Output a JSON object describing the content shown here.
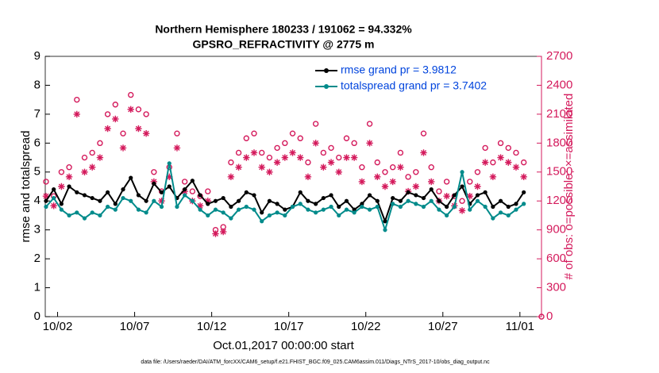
{
  "chart_data": {
    "type": "line",
    "title": "Northern Hemisphere 180233 / 191062 = 94.332%",
    "subtitle": "GPSRO_REFRACTIVITY @ 2775 m",
    "ylabel": "rmse and totalspread",
    "y2label": "# of obs: o=possible; ×=assimilated",
    "xlabel": "Oct.01,2017 00:00:00 start",
    "footnote": "data file: /Users/raeder/DAI/ATM_forcXX/CAM6_setup/f.e21.FHIST_BGC.f09_025.CAM6assim.011/Diags_NTrS_2017-10/obs_diag_output.nc",
    "legend": "upper right",
    "xlim": [
      1.2,
      33.4
    ],
    "xticks": [
      {
        "value": 2,
        "label": "10/02"
      },
      {
        "value": 7,
        "label": "10/07"
      },
      {
        "value": 12,
        "label": "10/12"
      },
      {
        "value": 17,
        "label": "10/17"
      },
      {
        "value": 22,
        "label": "10/22"
      },
      {
        "value": 27,
        "label": "10/27"
      },
      {
        "value": 32,
        "label": "11/01"
      }
    ],
    "ylim": [
      0,
      9
    ],
    "yticks": [
      0,
      1,
      2,
      3,
      4,
      5,
      6,
      7,
      8,
      9
    ],
    "y2lim": [
      0,
      2700
    ],
    "y2ticks": [
      0,
      300,
      600,
      900,
      1200,
      1500,
      1800,
      2100,
      2400,
      2700
    ],
    "y2color": "#d41a5c",
    "x": [
      1.25,
      1.75,
      2.25,
      2.75,
      3.25,
      3.75,
      4.25,
      4.75,
      5.25,
      5.75,
      6.25,
      6.75,
      7.25,
      7.75,
      8.25,
      8.75,
      9.25,
      9.75,
      10.25,
      10.75,
      11.25,
      11.75,
      12.25,
      12.75,
      13.25,
      13.75,
      14.25,
      14.75,
      15.25,
      15.75,
      16.25,
      16.75,
      17.25,
      17.75,
      18.25,
      18.75,
      19.25,
      19.75,
      20.25,
      20.75,
      21.25,
      21.75,
      22.25,
      22.75,
      23.25,
      23.75,
      24.25,
      24.75,
      25.25,
      25.75,
      26.25,
      26.75,
      27.25,
      27.75,
      28.25,
      28.75,
      29.25,
      29.75,
      30.25,
      30.75,
      31.25,
      31.75,
      32.25,
      33.4
    ],
    "series": [
      {
        "name": "rmse grand pr = 3.9812",
        "color": "#000000",
        "marker": "dot",
        "values": [
          4.0,
          4.4,
          3.9,
          4.5,
          4.3,
          4.2,
          4.1,
          4.0,
          4.3,
          3.9,
          4.4,
          4.8,
          4.2,
          4.0,
          4.6,
          4.3,
          4.5,
          4.1,
          4.4,
          4.7,
          4.2,
          3.9,
          4.0,
          4.1,
          3.8,
          4.0,
          4.3,
          4.2,
          3.6,
          4.0,
          3.9,
          3.7,
          3.8,
          4.3,
          4.0,
          3.9,
          4.1,
          4.2,
          3.8,
          4.0,
          3.7,
          3.9,
          4.2,
          4.0,
          3.3,
          4.1,
          4.0,
          4.3,
          4.2,
          4.1,
          4.4,
          4.0,
          3.8,
          4.2,
          4.5,
          3.9,
          4.2,
          4.3,
          3.8,
          4.0,
          3.8,
          3.9,
          4.3,
          null
        ]
      },
      {
        "name": "totalspread grand pr = 3.7402",
        "color": "#008b8b",
        "marker": "dot",
        "values": [
          3.8,
          4.1,
          3.7,
          3.5,
          3.6,
          3.4,
          3.6,
          3.5,
          3.8,
          3.7,
          4.1,
          4.0,
          3.7,
          3.6,
          4.0,
          3.8,
          5.3,
          3.8,
          4.2,
          4.0,
          3.7,
          3.5,
          3.7,
          3.6,
          3.4,
          3.7,
          3.8,
          3.7,
          3.3,
          3.5,
          3.6,
          3.5,
          3.8,
          3.9,
          3.7,
          3.6,
          3.7,
          3.8,
          3.5,
          3.7,
          3.6,
          3.8,
          3.7,
          3.8,
          3.0,
          3.9,
          3.8,
          4.0,
          3.9,
          3.8,
          4.0,
          3.7,
          3.5,
          3.8,
          5.0,
          3.7,
          4.0,
          3.8,
          3.4,
          3.6,
          3.5,
          3.7,
          3.9,
          null
        ]
      },
      {
        "color": "#d41a5c",
        "marker": "circle",
        "axis": "y2",
        "values": [
          1400,
          1250,
          1500,
          1550,
          2250,
          1650,
          1700,
          1800,
          2100,
          2200,
          1900,
          2300,
          2150,
          2100,
          1500,
          1300,
          1550,
          1900,
          1400,
          1300,
          1250,
          1300,
          900,
          930,
          1600,
          1700,
          1850,
          1900,
          1700,
          1650,
          1750,
          1800,
          1900,
          1850,
          1600,
          2000,
          1700,
          1750,
          1650,
          1850,
          1800,
          1550,
          2000,
          1600,
          1500,
          1550,
          1700,
          1450,
          1500,
          1900,
          1550,
          1300,
          1400,
          1250,
          1200,
          1400,
          1500,
          1750,
          1600,
          1800,
          1750,
          1700,
          1600,
          0
        ]
      },
      {
        "color": "#d41a5c",
        "marker": "star",
        "axis": "y2",
        "values": [
          1250,
          1150,
          1350,
          1450,
          2100,
          1500,
          1550,
          1650,
          1950,
          2050,
          1750,
          2150,
          1950,
          1900,
          1400,
          1200,
          1450,
          1750,
          1300,
          1200,
          1150,
          1200,
          860,
          880,
          1450,
          1550,
          1650,
          1700,
          1550,
          1500,
          1600,
          1650,
          1700,
          1650,
          1450,
          1800,
          1550,
          1600,
          1500,
          1650,
          1650,
          1400,
          1800,
          1450,
          1350,
          1400,
          1550,
          1300,
          1350,
          1700,
          1400,
          1200,
          1250,
          1150,
          1100,
          1250,
          1350,
          1600,
          1450,
          1650,
          1600,
          1550,
          1450,
          null
        ]
      }
    ]
  }
}
